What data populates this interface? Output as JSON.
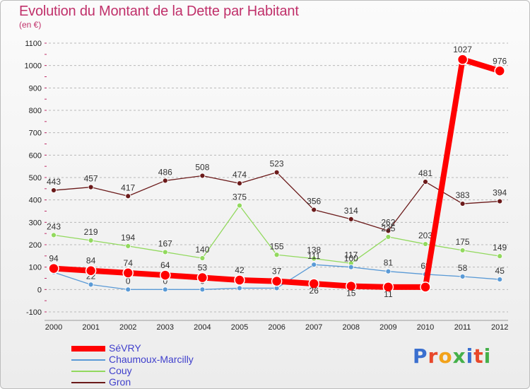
{
  "title": "Evolution du Montant de la Dette par Habitant",
  "subtitle": "(en €)",
  "colors": {
    "title": "#c0306a",
    "legend_text": "#4040cc",
    "grid": "#b8b8b8",
    "axis_text": "#222222"
  },
  "logo": {
    "text": "Proxiti",
    "letter_colors": [
      "#3a6fcf",
      "#e8472a",
      "#f2a21a",
      "#45b04a",
      "#3a6fcf",
      "#e8472a",
      "#45b04a"
    ]
  },
  "chart_data": {
    "type": "line",
    "title": "Evolution du Montant de la Dette par Habitant",
    "subtitle": "(en €)",
    "x": [
      "2000",
      "2001",
      "2002",
      "2003",
      "2004",
      "2005",
      "2006",
      "2007",
      "2008",
      "2009",
      "2010",
      "2011",
      "2012"
    ],
    "ylim": [
      -100,
      1100
    ],
    "yticks": [
      -100,
      0,
      100,
      200,
      300,
      400,
      500,
      600,
      700,
      800,
      900,
      1000,
      1100
    ],
    "grid": "horizontal dashed",
    "legend_position": "bottom-left",
    "series": [
      {
        "name": "Gron",
        "color": "#6b1a1a",
        "width": 1.3,
        "marker": 3.5,
        "values": [
          443,
          457,
          417,
          486,
          508,
          474,
          523,
          356,
          314,
          262,
          481,
          383,
          394
        ],
        "labels": [
          "443",
          "457",
          "417",
          "486",
          "508",
          "474",
          "523",
          "356",
          "314",
          "262",
          "481",
          "383",
          "394"
        ],
        "label_offsets": [
          -12,
          -12,
          -12,
          -12,
          -12,
          -12,
          -12,
          -12,
          -12,
          -12,
          -12,
          -12,
          -12
        ]
      },
      {
        "name": "Couy",
        "color": "#92d95e",
        "width": 1.3,
        "marker": 3.5,
        "values": [
          243,
          219,
          194,
          167,
          140,
          375,
          155,
          138,
          117,
          235,
          203,
          175,
          149
        ],
        "labels": [
          "243",
          "219",
          "194",
          "167",
          "140",
          "375",
          "155",
          "138",
          "117",
          "235",
          "203",
          "175",
          "149"
        ],
        "label_offsets": [
          -12,
          -12,
          -12,
          -12,
          -12,
          -12,
          -12,
          -12,
          -12,
          -12,
          -12,
          -12,
          -12
        ]
      },
      {
        "name": "Chaumoux-Marcilly",
        "color": "#5a9ad6",
        "width": 1.3,
        "marker": 3.5,
        "values": [
          77,
          22,
          0,
          0,
          0,
          6,
          6,
          111,
          100,
          81,
          68,
          58,
          45
        ],
        "labels": [
          "",
          "22",
          "0",
          "0",
          "0",
          "",
          "",
          "111",
          "100",
          "81",
          "68",
          "58",
          "45"
        ],
        "label_offsets": [
          0,
          -12,
          -12,
          -12,
          -12,
          0,
          0,
          -12,
          -12,
          -12,
          -12,
          -12,
          -12
        ]
      },
      {
        "name": "SéVRY",
        "color": "#ff0000",
        "width": 8,
        "marker": 7,
        "values": [
          94,
          84,
          74,
          64,
          53,
          42,
          37,
          26,
          15,
          11,
          11,
          1027,
          976
        ],
        "labels": [
          "94",
          "84",
          "74",
          "64",
          "53",
          "42",
          "37",
          "26",
          "15",
          "11",
          "",
          "1027",
          "976"
        ],
        "label_offsets": [
          -14,
          -14,
          -14,
          -14,
          -14,
          -14,
          -14,
          10,
          10,
          10,
          0,
          -14,
          -14
        ]
      }
    ]
  },
  "legend": [
    {
      "label": "SéVRY",
      "color": "#ff0000",
      "thickness": 8
    },
    {
      "label": "Chaumoux-Marcilly",
      "color": "#5a9ad6",
      "thickness": 2
    },
    {
      "label": "Couy",
      "color": "#92d95e",
      "thickness": 2
    },
    {
      "label": "Gron",
      "color": "#6b1a1a",
      "thickness": 2
    }
  ]
}
